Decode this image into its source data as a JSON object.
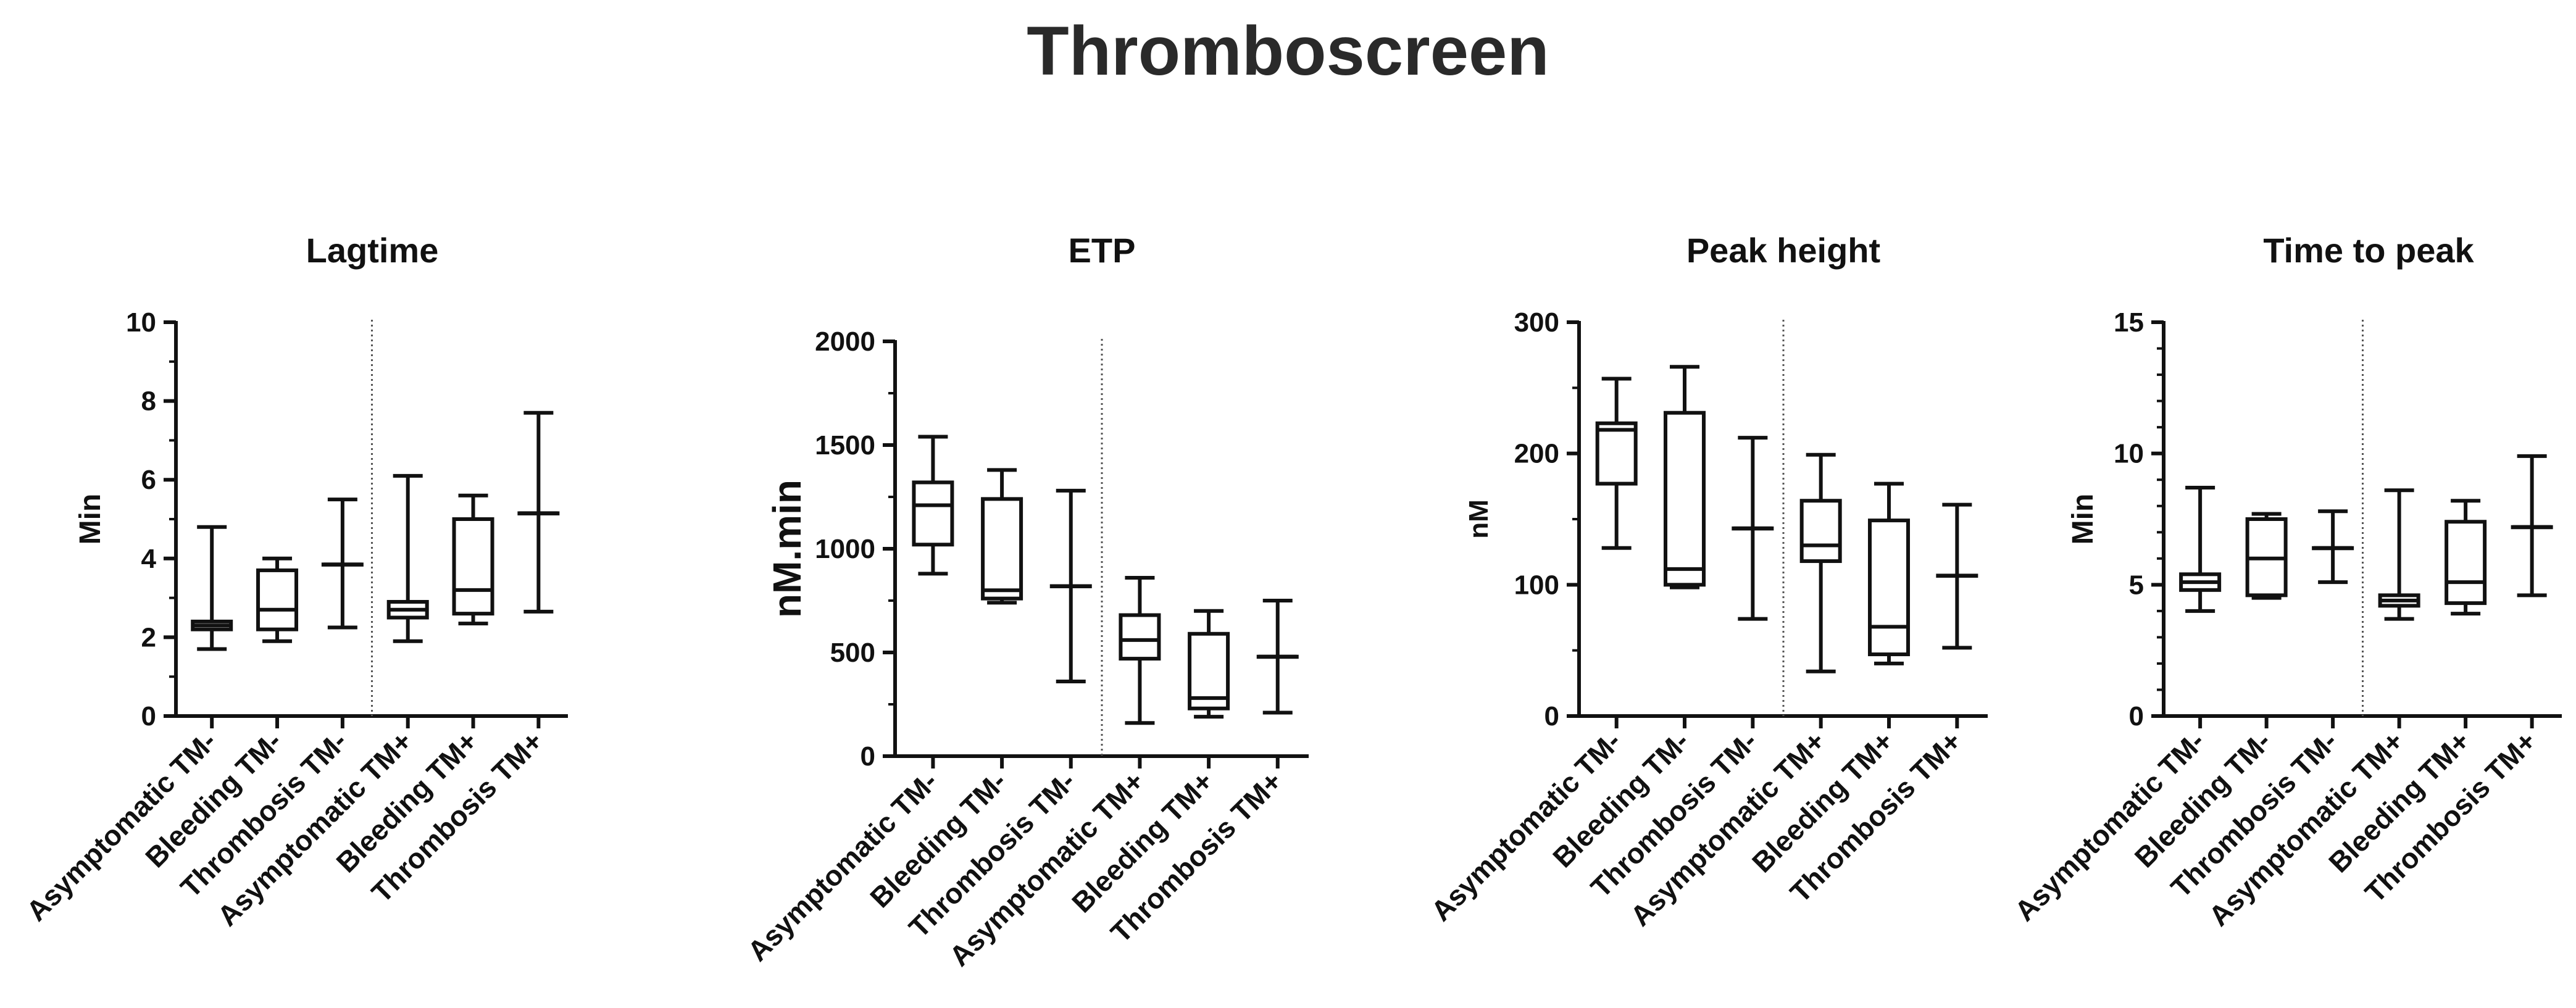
{
  "title": "Thromboscreen",
  "chart_data": [
    {
      "type": "boxplot",
      "title": "Lagtime",
      "ylabel": "Min",
      "ylim": [
        0,
        10
      ],
      "yticks": [
        "0",
        "2",
        "4",
        "6",
        "8",
        "10"
      ],
      "categories": [
        "Asymptomatic TM-",
        "Bleeding TM-",
        "Thrombosis TM-",
        "Asymptomatic TM+",
        "Bleeding TM+",
        "Thrombosis TM+"
      ],
      "separator_after_index": 2,
      "boxes": [
        {
          "min": 1.7,
          "q1": 2.2,
          "median": 2.3,
          "q3": 2.4,
          "max": 4.8
        },
        {
          "min": 1.9,
          "q1": 2.2,
          "median": 2.7,
          "q3": 3.7,
          "max": 4.0
        },
        {
          "min": 2.25,
          "q1": 3.85,
          "median": 3.85,
          "q3": 3.85,
          "max": 5.5
        },
        {
          "min": 1.9,
          "q1": 2.5,
          "median": 2.7,
          "q3": 2.9,
          "max": 6.1
        },
        {
          "min": 2.35,
          "q1": 2.6,
          "median": 3.2,
          "q3": 5.0,
          "max": 5.6
        },
        {
          "min": 2.65,
          "q1": 5.15,
          "median": 5.15,
          "q3": 5.15,
          "max": 7.7
        }
      ]
    },
    {
      "type": "boxplot",
      "title": "ETP",
      "ylabel": "nM.min",
      "ylim": [
        0,
        2000
      ],
      "yticks": [
        "0",
        "500",
        "1000",
        "1500",
        "2000"
      ],
      "categories": [
        "Asymptomatic TM-",
        "Bleeding TM-",
        "Thrombosis TM-",
        "Asymptomatic TM+",
        "Bleeding TM+",
        "Thrombosis TM+"
      ],
      "separator_after_index": 2,
      "boxes": [
        {
          "min": 880,
          "q1": 1020,
          "median": 1210,
          "q3": 1320,
          "max": 1540
        },
        {
          "min": 740,
          "q1": 760,
          "median": 800,
          "q3": 1240,
          "max": 1380
        },
        {
          "min": 360,
          "q1": 820,
          "median": 820,
          "q3": 820,
          "max": 1280
        },
        {
          "min": 160,
          "q1": 470,
          "median": 560,
          "q3": 680,
          "max": 860
        },
        {
          "min": 190,
          "q1": 230,
          "median": 280,
          "q3": 590,
          "max": 700
        },
        {
          "min": 210,
          "q1": 480,
          "median": 480,
          "q3": 480,
          "max": 750
        }
      ]
    },
    {
      "type": "boxplot",
      "title": "Peak height",
      "ylabel": "nM",
      "ylim": [
        0,
        300
      ],
      "yticks": [
        "0",
        "100",
        "200",
        "300"
      ],
      "categories": [
        "Asymptomatic TM-",
        "Bleeding TM-",
        "Thrombosis TM-",
        "Asymptomatic TM+",
        "Bleeding TM+",
        "Thrombosis TM+"
      ],
      "separator_after_index": 2,
      "boxes": [
        {
          "min": 128,
          "q1": 177,
          "median": 218,
          "q3": 223,
          "max": 257
        },
        {
          "min": 98,
          "q1": 100,
          "median": 112,
          "q3": 231,
          "max": 266
        },
        {
          "min": 74,
          "q1": 143,
          "median": 143,
          "q3": 143,
          "max": 212
        },
        {
          "min": 34,
          "q1": 118,
          "median": 130,
          "q3": 164,
          "max": 199
        },
        {
          "min": 40,
          "q1": 47,
          "median": 68,
          "q3": 149,
          "max": 177
        },
        {
          "min": 52,
          "q1": 107,
          "median": 107,
          "q3": 107,
          "max": 161
        }
      ]
    },
    {
      "type": "boxplot",
      "title": "Time to peak",
      "ylabel": "Min",
      "ylim": [
        0,
        15
      ],
      "yticks": [
        "0",
        "5",
        "10",
        "15"
      ],
      "categories": [
        "Asymptomatic TM-",
        "Bleeding TM-",
        "Thrombosis TM-",
        "Asymptomatic TM+",
        "Bleeding TM+",
        "Thrombosis TM+"
      ],
      "separator_after_index": 2,
      "boxes": [
        {
          "min": 4.0,
          "q1": 4.8,
          "median": 5.1,
          "q3": 5.4,
          "max": 8.7
        },
        {
          "min": 4.5,
          "q1": 4.6,
          "median": 6.0,
          "q3": 7.5,
          "max": 7.7
        },
        {
          "min": 5.1,
          "q1": 6.4,
          "median": 6.4,
          "q3": 6.4,
          "max": 7.8
        },
        {
          "min": 3.7,
          "q1": 4.2,
          "median": 4.4,
          "q3": 4.6,
          "max": 8.6
        },
        {
          "min": 3.9,
          "q1": 4.3,
          "median": 5.1,
          "q3": 7.4,
          "max": 8.2
        },
        {
          "min": 4.6,
          "q1": 7.2,
          "median": 7.2,
          "q3": 7.2,
          "max": 9.9
        }
      ]
    }
  ]
}
